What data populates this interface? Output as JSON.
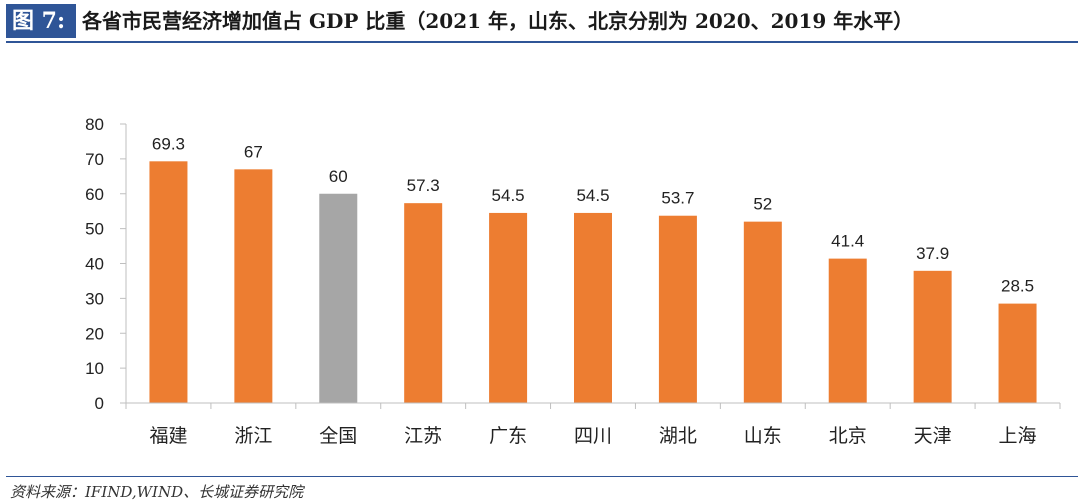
{
  "figure": {
    "label": "图 7:",
    "title": "各省市民营经济增加值占 GDP 比重（2021 年，山东、北京分别为 2020、2019 年水平）",
    "source": "资料来源：IFIND,WIND、长城证券研究院"
  },
  "colors": {
    "header": "#2f5597",
    "bar": "#ed7d31",
    "bar_highlight": "#a6a6a6",
    "axis": "#bfbfbf"
  },
  "chart_data": {
    "type": "bar",
    "title": "",
    "xlabel": "",
    "ylabel": "",
    "categories": [
      "福建",
      "浙江",
      "全国",
      "江苏",
      "广东",
      "四川",
      "湖北",
      "山东",
      "北京",
      "天津",
      "上海"
    ],
    "values": [
      69.3,
      67,
      60,
      57.3,
      54.5,
      54.5,
      53.7,
      52,
      41.4,
      37.9,
      28.5
    ],
    "value_labels": [
      "69.3",
      "67",
      "60",
      "57.3",
      "54.5",
      "54.5",
      "53.7",
      "52",
      "41.4",
      "37.9",
      "28.5"
    ],
    "highlight_category": "全国",
    "ylim": [
      0,
      80
    ],
    "yticks": [
      0,
      10,
      20,
      30,
      40,
      50,
      60,
      70,
      80
    ],
    "ytick_labels": [
      "0",
      "10",
      "20",
      "30",
      "40",
      "50",
      "60",
      "70",
      "80"
    ],
    "grid": false,
    "legend": "none"
  }
}
